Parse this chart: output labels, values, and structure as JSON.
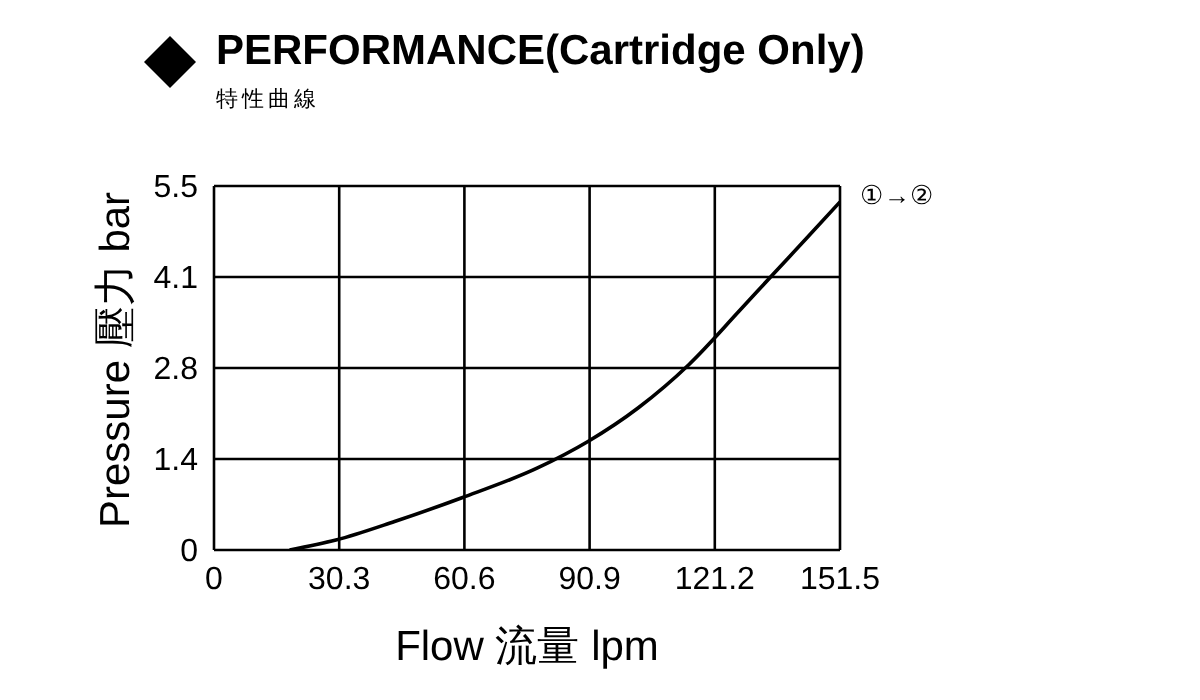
{
  "chart_data": {
    "type": "line",
    "title": "PERFORMANCE(Cartridge Only)",
    "subtitle": "特性曲線",
    "xlabel": "Flow 流量 lpm",
    "ylabel": "Pressure 壓力 bar",
    "annotations": [
      "①→②"
    ],
    "x": [
      18.3,
      29.5,
      43.7,
      60,
      78.3,
      90.5,
      102.7,
      114.9,
      127.1,
      135.2,
      143.4,
      151.5
    ],
    "series": [
      {
        "color": "#000000",
        "values": [
          0,
          0.15,
          0.43,
          0.79,
          1.24,
          1.64,
          2.15,
          2.8,
          3.61,
          4.16,
          4.71,
          5.26
        ]
      }
    ],
    "xlim": [
      0,
      151.5
    ],
    "xticks": [
      0,
      30.3,
      60.6,
      90.9,
      121.2,
      151.5
    ],
    "ylim": [
      0,
      5.5
    ],
    "yticks": [
      0,
      {
        "value": 1.375,
        "label": "1.4"
      },
      {
        "value": 2.75,
        "label": "2.8"
      },
      {
        "value": 4.125,
        "label": "4.1"
      },
      5.5
    ],
    "grid": true,
    "legend": false,
    "marker": "none",
    "line_style": "solid"
  }
}
